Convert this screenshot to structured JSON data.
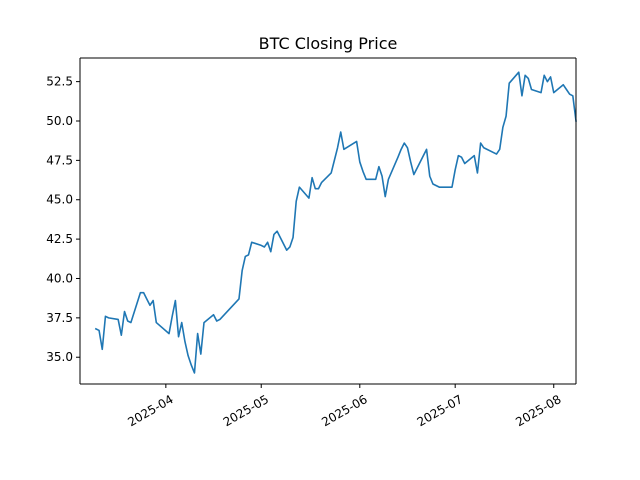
{
  "chart_data": {
    "type": "line",
    "title": "BTC Closing Price",
    "xlabel": "",
    "ylabel": "",
    "xlim": [
      "2025-03-05",
      "2025-08-08"
    ],
    "ylim": [
      33.3,
      54.0
    ],
    "grid": false,
    "legend": "none",
    "colors": {
      "line": "#1f77b4",
      "axis": "#000000",
      "background": "#ffffff"
    },
    "x_ticks": [
      {
        "date": "2025-04-01",
        "label": "2025-04"
      },
      {
        "date": "2025-05-01",
        "label": "2025-05"
      },
      {
        "date": "2025-06-01",
        "label": "2025-06"
      },
      {
        "date": "2025-07-01",
        "label": "2025-07"
      },
      {
        "date": "2025-08-01",
        "label": "2025-08"
      }
    ],
    "y_ticks": [
      {
        "value": 35.0,
        "label": "35.0"
      },
      {
        "value": 37.5,
        "label": "37.5"
      },
      {
        "value": 40.0,
        "label": "40.0"
      },
      {
        "value": 42.5,
        "label": "42.5"
      },
      {
        "value": 45.0,
        "label": "45.0"
      },
      {
        "value": 47.5,
        "label": "47.5"
      },
      {
        "value": 50.0,
        "label": "50.0"
      },
      {
        "value": 52.5,
        "label": "52.5"
      }
    ],
    "series": [
      {
        "name": "",
        "points": [
          [
            "2025-03-10",
            36.8
          ],
          [
            "2025-03-11",
            36.7
          ],
          [
            "2025-03-12",
            35.5
          ],
          [
            "2025-03-13",
            37.6
          ],
          [
            "2025-03-14",
            37.5
          ],
          [
            "2025-03-17",
            37.4
          ],
          [
            "2025-03-18",
            36.4
          ],
          [
            "2025-03-19",
            37.9
          ],
          [
            "2025-03-20",
            37.3
          ],
          [
            "2025-03-21",
            37.2
          ],
          [
            "2025-03-24",
            39.1
          ],
          [
            "2025-03-25",
            39.1
          ],
          [
            "2025-03-26",
            38.7
          ],
          [
            "2025-03-27",
            38.3
          ],
          [
            "2025-03-28",
            38.6
          ],
          [
            "2025-03-29",
            37.2
          ],
          [
            "2025-04-02",
            36.5
          ],
          [
            "2025-04-03",
            37.6
          ],
          [
            "2025-04-04",
            38.6
          ],
          [
            "2025-04-05",
            36.3
          ],
          [
            "2025-04-06",
            37.2
          ],
          [
            "2025-04-07",
            36.0
          ],
          [
            "2025-04-08",
            35.1
          ],
          [
            "2025-04-09",
            34.5
          ],
          [
            "2025-04-10",
            34.0
          ],
          [
            "2025-04-11",
            36.5
          ],
          [
            "2025-04-12",
            35.2
          ],
          [
            "2025-04-13",
            37.2
          ],
          [
            "2025-04-16",
            37.7
          ],
          [
            "2025-04-17",
            37.3
          ],
          [
            "2025-04-18",
            37.4
          ],
          [
            "2025-04-24",
            38.7
          ],
          [
            "2025-04-25",
            40.5
          ],
          [
            "2025-04-26",
            41.4
          ],
          [
            "2025-04-27",
            41.5
          ],
          [
            "2025-04-28",
            42.3
          ],
          [
            "2025-05-01",
            42.1
          ],
          [
            "2025-05-02",
            42.0
          ],
          [
            "2025-05-03",
            42.3
          ],
          [
            "2025-05-04",
            41.7
          ],
          [
            "2025-05-05",
            42.8
          ],
          [
            "2025-05-06",
            43.0
          ],
          [
            "2025-05-09",
            41.8
          ],
          [
            "2025-05-10",
            42.0
          ],
          [
            "2025-05-11",
            42.6
          ],
          [
            "2025-05-12",
            44.9
          ],
          [
            "2025-05-13",
            45.8
          ],
          [
            "2025-05-16",
            45.1
          ],
          [
            "2025-05-17",
            46.4
          ],
          [
            "2025-05-18",
            45.7
          ],
          [
            "2025-05-19",
            45.7
          ],
          [
            "2025-05-20",
            46.1
          ],
          [
            "2025-05-23",
            46.7
          ],
          [
            "2025-05-24",
            47.5
          ],
          [
            "2025-05-25",
            48.3
          ],
          [
            "2025-05-26",
            49.3
          ],
          [
            "2025-05-27",
            48.2
          ],
          [
            "2025-05-31",
            48.7
          ],
          [
            "2025-06-01",
            47.4
          ],
          [
            "2025-06-02",
            46.8
          ],
          [
            "2025-06-03",
            46.3
          ],
          [
            "2025-06-06",
            46.3
          ],
          [
            "2025-06-07",
            47.1
          ],
          [
            "2025-06-08",
            46.5
          ],
          [
            "2025-06-09",
            45.2
          ],
          [
            "2025-06-10",
            46.3
          ],
          [
            "2025-06-13",
            47.7
          ],
          [
            "2025-06-14",
            48.2
          ],
          [
            "2025-06-15",
            48.6
          ],
          [
            "2025-06-16",
            48.3
          ],
          [
            "2025-06-17",
            47.4
          ],
          [
            "2025-06-18",
            46.6
          ],
          [
            "2025-06-19",
            47.0
          ],
          [
            "2025-06-21",
            47.8
          ],
          [
            "2025-06-22",
            48.2
          ],
          [
            "2025-06-23",
            46.5
          ],
          [
            "2025-06-24",
            46.0
          ],
          [
            "2025-06-26",
            45.8
          ],
          [
            "2025-06-29",
            45.8
          ],
          [
            "2025-06-30",
            45.8
          ],
          [
            "2025-07-01",
            46.9
          ],
          [
            "2025-07-02",
            47.8
          ],
          [
            "2025-07-03",
            47.7
          ],
          [
            "2025-07-04",
            47.3
          ],
          [
            "2025-07-07",
            47.8
          ],
          [
            "2025-07-08",
            46.7
          ],
          [
            "2025-07-09",
            48.6
          ],
          [
            "2025-07-10",
            48.3
          ],
          [
            "2025-07-14",
            47.9
          ],
          [
            "2025-07-15",
            48.2
          ],
          [
            "2025-07-16",
            49.6
          ],
          [
            "2025-07-17",
            50.3
          ],
          [
            "2025-07-18",
            52.4
          ],
          [
            "2025-07-21",
            53.1
          ],
          [
            "2025-07-22",
            51.6
          ],
          [
            "2025-07-23",
            52.9
          ],
          [
            "2025-07-24",
            52.7
          ],
          [
            "2025-07-25",
            52.0
          ],
          [
            "2025-07-28",
            51.8
          ],
          [
            "2025-07-29",
            52.9
          ],
          [
            "2025-07-30",
            52.5
          ],
          [
            "2025-07-31",
            52.8
          ],
          [
            "2025-08-01",
            51.8
          ],
          [
            "2025-08-04",
            52.3
          ],
          [
            "2025-08-05",
            52.0
          ],
          [
            "2025-08-06",
            51.7
          ],
          [
            "2025-08-07",
            51.6
          ],
          [
            "2025-08-08",
            50.0
          ]
        ]
      }
    ]
  }
}
